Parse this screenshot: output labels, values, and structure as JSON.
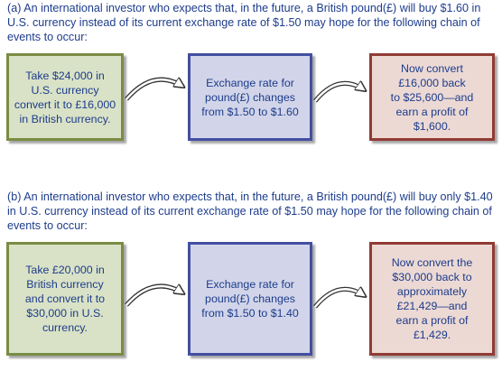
{
  "part_a": {
    "intro": "(a) An international investor who expects that, in the future, a British pound(£) will buy $1.60 in U.S. currency instead of its current exchange rate of $1.50 may hope for the following chain of events to occur:",
    "step1": "Take $24,000 in\nU.S. currency\nconvert it to £16,000\nin British currency.",
    "step2": "Exchange rate for\npound(£) changes\nfrom $1.50 to $1.60",
    "step3": "Now convert\n£16,000 back\nto  $25,600—and\nearn a profit of\n$1,600."
  },
  "part_b": {
    "intro": "(b) An international investor who expects that, in the future, a British pound(£) will buy only $1.40 in U.S. currency instead of its current exchange rate of $1.50 may hope for the following chain of events to occur:",
    "step1": "Take £20,000 in\nBritish currency\nand convert it to\n$30,000 in U.S.\ncurrency.",
    "step2": "Exchange rate for\npound(£) changes\nfrom $1.50 to $1.40",
    "step3": "Now convert the\n$30,000 back to\napproximately\n£21,429—and\nearn a profit of\n£1,429."
  },
  "colors": {
    "text": "#1d3c8c",
    "green_fill": "#d9e2c6",
    "green_border": "#7a8c44",
    "blue_fill": "#d2d5e9",
    "blue_border": "#434fa0",
    "red_fill": "#ecd9d4",
    "red_border": "#913b34"
  }
}
